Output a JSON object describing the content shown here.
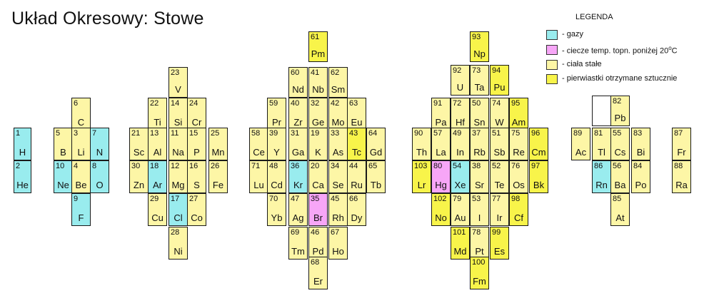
{
  "title": "Układ Okresowy: Stowe",
  "legend": {
    "title": "LEGENDA",
    "items": [
      {
        "key": "gas",
        "label": "- gazy",
        "color": "#99ecee"
      },
      {
        "key": "liq",
        "label": "- ciecze temp. topn. poniżej 20",
        "color": "#f7a6f7"
      },
      {
        "key": "sol",
        "label": "- ciała stałe",
        "color": "#fdf6a6"
      },
      {
        "key": "syn",
        "label": "- pierwiastki otrzymane sztucznie",
        "color": "#f8f44a"
      }
    ],
    "temp_unit": "o",
    "temp_unit_letter": "C"
  },
  "elements": [
    {
      "n": "1",
      "s": "H",
      "t": "gas"
    },
    {
      "n": "2",
      "s": "He",
      "t": "gas"
    },
    {
      "n": "6",
      "s": "C",
      "t": "sol"
    },
    {
      "n": "5",
      "s": "B",
      "t": "sol"
    },
    {
      "n": "3",
      "s": "Li",
      "t": "sol"
    },
    {
      "n": "7",
      "s": "N",
      "t": "gas"
    },
    {
      "n": "10",
      "s": "Ne",
      "t": "gas"
    },
    {
      "n": "4",
      "s": "Be",
      "t": "sol"
    },
    {
      "n": "8",
      "s": "O",
      "t": "gas"
    },
    {
      "n": "9",
      "s": "F",
      "t": "gas"
    },
    {
      "n": "23",
      "s": "V",
      "t": "sol"
    },
    {
      "n": "22",
      "s": "Ti",
      "t": "sol"
    },
    {
      "n": "14",
      "s": "Si",
      "t": "sol"
    },
    {
      "n": "24",
      "s": "Cr",
      "t": "sol"
    },
    {
      "n": "21",
      "s": "Sc",
      "t": "sol"
    },
    {
      "n": "13",
      "s": "Al",
      "t": "sol"
    },
    {
      "n": "11",
      "s": "Na",
      "t": "sol"
    },
    {
      "n": "15",
      "s": "P",
      "t": "sol"
    },
    {
      "n": "25",
      "s": "Mn",
      "t": "sol"
    },
    {
      "n": "30",
      "s": "Zn",
      "t": "sol"
    },
    {
      "n": "18",
      "s": "Ar",
      "t": "gas"
    },
    {
      "n": "12",
      "s": "Mg",
      "t": "sol"
    },
    {
      "n": "16",
      "s": "S",
      "t": "sol"
    },
    {
      "n": "26",
      "s": "Fe",
      "t": "sol"
    },
    {
      "n": "29",
      "s": "Cu",
      "t": "sol"
    },
    {
      "n": "17",
      "s": "Cl",
      "t": "gas"
    },
    {
      "n": "27",
      "s": "Co",
      "t": "sol"
    },
    {
      "n": "28",
      "s": "Ni",
      "t": "sol"
    },
    {
      "n": "61",
      "s": "Pm",
      "t": "syn"
    },
    {
      "n": "60",
      "s": "Nd",
      "t": "sol"
    },
    {
      "n": "41",
      "s": "Nb",
      "t": "sol"
    },
    {
      "n": "62",
      "s": "Sm",
      "t": "sol"
    },
    {
      "n": "59",
      "s": "Pr",
      "t": "sol"
    },
    {
      "n": "40",
      "s": "Zr",
      "t": "sol"
    },
    {
      "n": "32",
      "s": "Ge",
      "t": "sol"
    },
    {
      "n": "42",
      "s": "Mo",
      "t": "sol"
    },
    {
      "n": "63",
      "s": "Eu",
      "t": "sol"
    },
    {
      "n": "58",
      "s": "Ce",
      "t": "sol"
    },
    {
      "n": "39",
      "s": "Y",
      "t": "sol"
    },
    {
      "n": "31",
      "s": "Ga",
      "t": "sol"
    },
    {
      "n": "19",
      "s": "K",
      "t": "sol"
    },
    {
      "n": "33",
      "s": "As",
      "t": "sol"
    },
    {
      "n": "43",
      "s": "Tc",
      "t": "syn"
    },
    {
      "n": "64",
      "s": "Gd",
      "t": "sol"
    },
    {
      "n": "71",
      "s": "Lu",
      "t": "sol"
    },
    {
      "n": "48",
      "s": "Cd",
      "t": "sol"
    },
    {
      "n": "36",
      "s": "Kr",
      "t": "gas"
    },
    {
      "n": "20",
      "s": "Ca",
      "t": "sol"
    },
    {
      "n": "34",
      "s": "Se",
      "t": "sol"
    },
    {
      "n": "44",
      "s": "Ru",
      "t": "sol"
    },
    {
      "n": "65",
      "s": "Tb",
      "t": "sol"
    },
    {
      "n": "70",
      "s": "Yb",
      "t": "sol"
    },
    {
      "n": "47",
      "s": "Ag",
      "t": "sol"
    },
    {
      "n": "35",
      "s": "Br",
      "t": "liq"
    },
    {
      "n": "45",
      "s": "Rh",
      "t": "sol"
    },
    {
      "n": "66",
      "s": "Dy",
      "t": "sol"
    },
    {
      "n": "69",
      "s": "Tm",
      "t": "sol"
    },
    {
      "n": "46",
      "s": "Pd",
      "t": "sol"
    },
    {
      "n": "67",
      "s": "Ho",
      "t": "sol"
    },
    {
      "n": "68",
      "s": "Er",
      "t": "sol"
    },
    {
      "n": "93",
      "s": "Np",
      "t": "syn"
    },
    {
      "n": "92",
      "s": "U",
      "t": "sol"
    },
    {
      "n": "73",
      "s": "Ta",
      "t": "sol"
    },
    {
      "n": "94",
      "s": "Pu",
      "t": "syn"
    },
    {
      "n": "91",
      "s": "Pa",
      "t": "sol"
    },
    {
      "n": "72",
      "s": "Hf",
      "t": "sol"
    },
    {
      "n": "50",
      "s": "Sn",
      "t": "sol"
    },
    {
      "n": "74",
      "s": "W",
      "t": "sol"
    },
    {
      "n": "95",
      "s": "Am",
      "t": "syn"
    },
    {
      "n": "90",
      "s": "Th",
      "t": "sol"
    },
    {
      "n": "57",
      "s": "La",
      "t": "sol"
    },
    {
      "n": "49",
      "s": "In",
      "t": "sol"
    },
    {
      "n": "37",
      "s": "Rb",
      "t": "sol"
    },
    {
      "n": "51",
      "s": "Sb",
      "t": "sol"
    },
    {
      "n": "75",
      "s": "Re",
      "t": "sol"
    },
    {
      "n": "96",
      "s": "Cm",
      "t": "syn"
    },
    {
      "n": "103",
      "s": "Lr",
      "t": "syn"
    },
    {
      "n": "80",
      "s": "Hg",
      "t": "liq"
    },
    {
      "n": "54",
      "s": "Xe",
      "t": "gas"
    },
    {
      "n": "38",
      "s": "Sr",
      "t": "sol"
    },
    {
      "n": "52",
      "s": "Te",
      "t": "sol"
    },
    {
      "n": "76",
      "s": "Os",
      "t": "sol"
    },
    {
      "n": "97",
      "s": "Bk",
      "t": "syn"
    },
    {
      "n": "102",
      "s": "No",
      "t": "syn"
    },
    {
      "n": "79",
      "s": "Au",
      "t": "sol"
    },
    {
      "n": "53",
      "s": "I",
      "t": "sol"
    },
    {
      "n": "77",
      "s": "Ir",
      "t": "sol"
    },
    {
      "n": "98",
      "s": "Cf",
      "t": "syn"
    },
    {
      "n": "101",
      "s": "Md",
      "t": "syn"
    },
    {
      "n": "78",
      "s": "Pt",
      "t": "sol"
    },
    {
      "n": "99",
      "s": "Es",
      "t": "syn"
    },
    {
      "n": "100",
      "s": "Fm",
      "t": "syn"
    },
    {
      "n": "",
      "s": "",
      "t": "empty"
    },
    {
      "n": "82",
      "s": "Pb",
      "t": "sol"
    },
    {
      "n": "89",
      "s": "Ac",
      "t": "sol"
    },
    {
      "n": "81",
      "s": "Tl",
      "t": "sol"
    },
    {
      "n": "55",
      "s": "Cs",
      "t": "sol"
    },
    {
      "n": "83",
      "s": "Bi",
      "t": "sol"
    },
    {
      "n": "86",
      "s": "Rn",
      "t": "gas"
    },
    {
      "n": "56",
      "s": "Ba",
      "t": "sol"
    },
    {
      "n": "84",
      "s": "Po",
      "t": "sol"
    },
    {
      "n": "85",
      "s": "At",
      "t": "sol"
    },
    {
      "n": "87",
      "s": "Fr",
      "t": "sol"
    },
    {
      "n": "88",
      "s": "Ra",
      "t": "sol"
    }
  ]
}
